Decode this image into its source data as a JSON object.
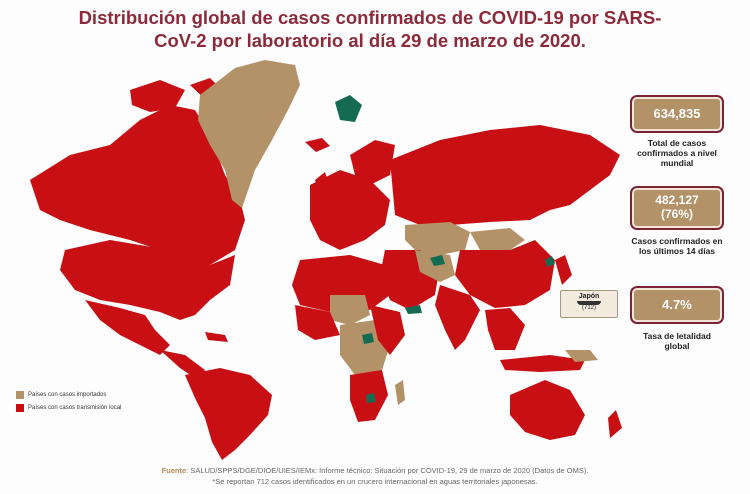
{
  "title_line1": "Distribución global de casos confirmados de COVID-19 por SARS-",
  "title_line2": "CoV-2 por laboratorio al día 29 de marzo de 2020.",
  "stats": [
    {
      "value": "634,835",
      "value2": "",
      "label": "Total de casos confirmados a nivel mundial"
    },
    {
      "value": "482,127",
      "value2": "(76%)",
      "label": "Casos confirmados en los últimos 14 días"
    },
    {
      "value": "4.7%",
      "value2": "",
      "label": "Tasa de letalidad global"
    }
  ],
  "japan": {
    "name": "Japón",
    "count": "(712)"
  },
  "legend": [
    {
      "label": "Países con casos importados",
      "color": "#b39268"
    },
    {
      "label": "Países con casos transmisión local",
      "color": "#c80f14"
    }
  ],
  "colors": {
    "local": "#c80f14",
    "imported": "#b39268",
    "no_cases": "#156b52",
    "ocean": "#ffffff"
  },
  "footer": {
    "source_label": "Fuente",
    "source_text": ": SALUD/SPPS/DGE/DIOE/UIES/IEMx: Informe técnico: Situación por COVID-19, 29 de marzo de 2020 (Datos de OMS).",
    "note": "*Se reportan 712 casos identificados en un crucero internacional en aguas territoriales japonesas."
  }
}
